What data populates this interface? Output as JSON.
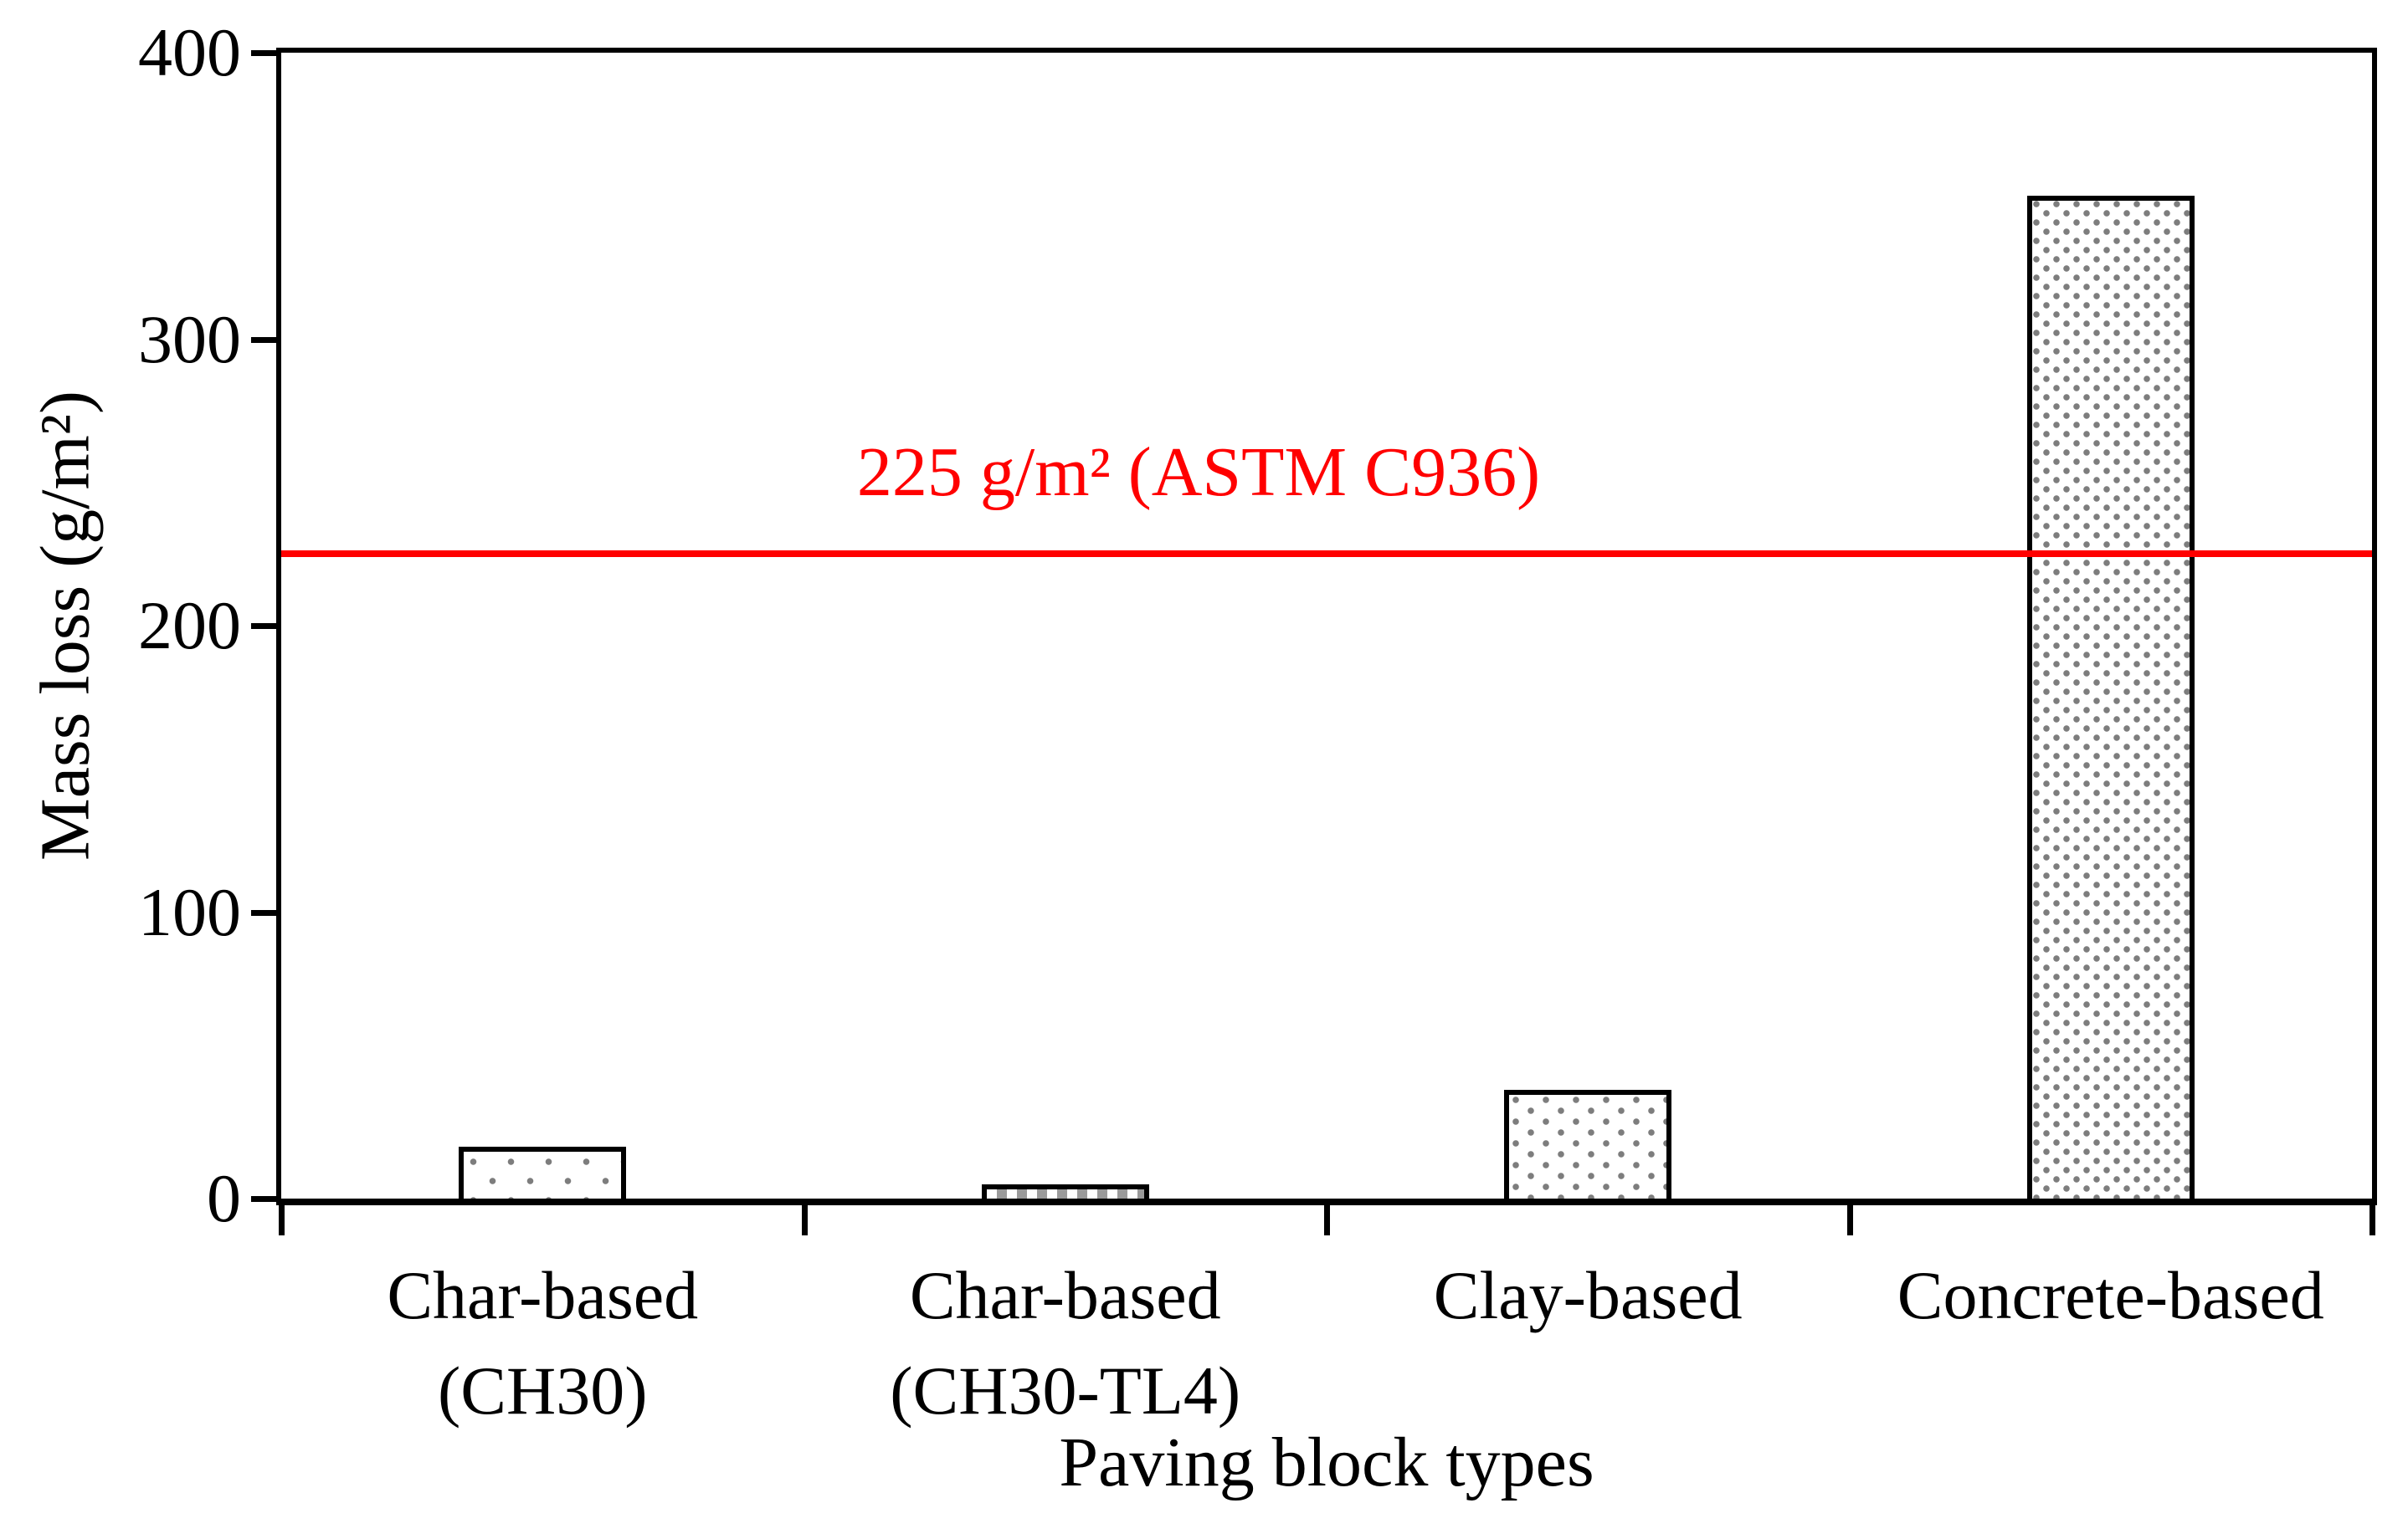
{
  "chart_data": {
    "type": "bar",
    "title": "",
    "xlabel": "Paving block types",
    "ylabel": "Mass loss (g/m²)",
    "categories": [
      [
        "Char-based",
        "(CH30)"
      ],
      [
        "Char-based",
        "(CH30-TL4)"
      ],
      [
        "Clay-based"
      ],
      [
        "Concrete-based"
      ]
    ],
    "values": [
      18,
      5,
      38,
      350
    ],
    "ylim": [
      0,
      400
    ],
    "yticks": [
      0,
      100,
      200,
      300,
      400
    ],
    "grid": false,
    "legend": false,
    "bar_patterns": [
      "dots-sparse",
      "checker",
      "dots-medium",
      "dots-dense"
    ],
    "reference_line": {
      "value": 225,
      "label": "225 g/m² (ASTM C936)",
      "color": "#ff0000"
    },
    "colors": {
      "axis": "#000000",
      "bar_fill": "#ffffff",
      "pattern_dot": "#7d7d7d",
      "background": "#ffffff"
    }
  }
}
